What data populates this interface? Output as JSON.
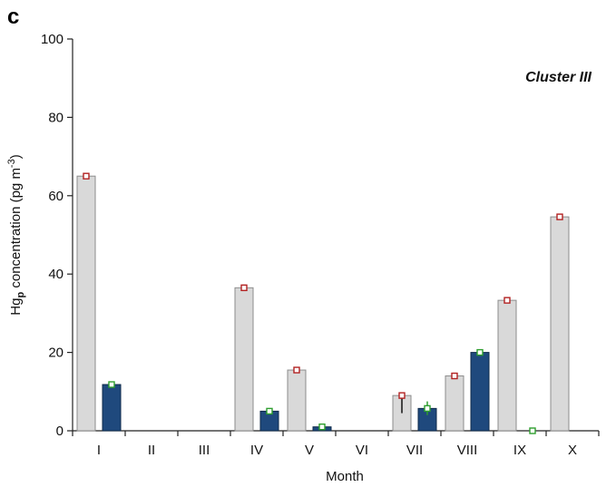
{
  "panel_label": "c",
  "chart_data": {
    "type": "bar",
    "annotation": "Cluster III",
    "xlabel": "Month",
    "ylabel": {
      "prefix": "Hg",
      "sub": "p",
      "middle": " concentration (pg m",
      "sup": "-3",
      "suffix": ")"
    },
    "ylim": [
      0,
      100
    ],
    "yticks": [
      0,
      20,
      40,
      60,
      80,
      100
    ],
    "categories": [
      "I",
      "II",
      "III",
      "IV",
      "V",
      "VI",
      "VII",
      "VIII",
      "IX",
      "X"
    ],
    "series": [
      {
        "color": "#d9d9d9",
        "marker_color": "#b22222",
        "values": [
          65,
          null,
          null,
          36.5,
          15.5,
          null,
          9,
          14,
          33.3,
          54.6
        ],
        "error": [
          null,
          null,
          null,
          null,
          null,
          null,
          [
            4.5,
            9
          ],
          null,
          null,
          null
        ]
      },
      {
        "color": "#1f497d",
        "marker_color": "#2e9e2e",
        "values": [
          11.8,
          null,
          null,
          5,
          1,
          null,
          5.7,
          20,
          0,
          null
        ],
        "error": [
          null,
          null,
          null,
          null,
          null,
          null,
          [
            4,
            7.5
          ],
          null,
          null,
          null
        ]
      }
    ],
    "grid": false
  }
}
